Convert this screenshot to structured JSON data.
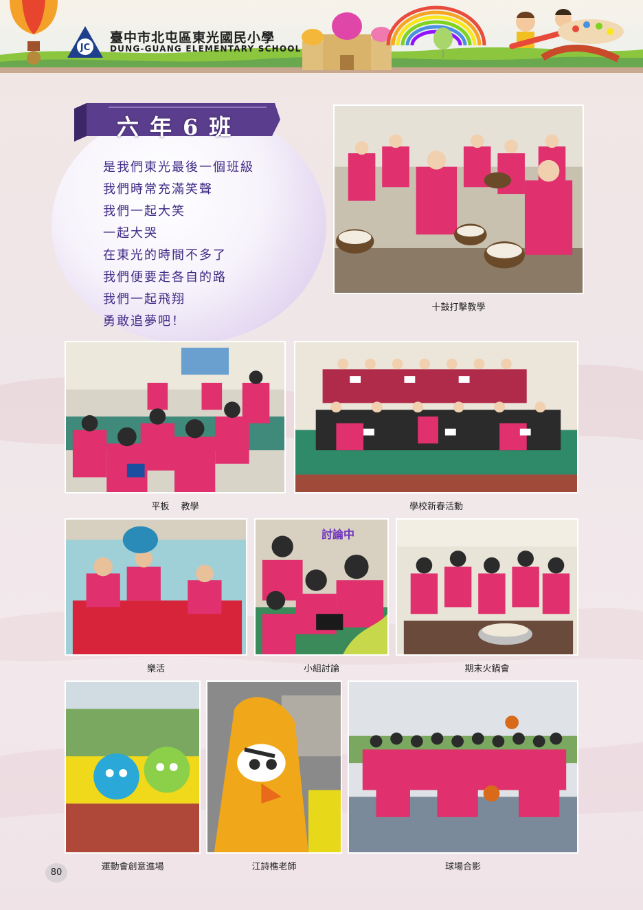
{
  "header": {
    "school_name_cn": "臺中市北屯區東光國民小學",
    "school_name_en": "DUNG-GUANG ELEMENTARY SCHOOL",
    "logo_letters": "JC"
  },
  "class_panel": {
    "title": "六年6班",
    "poem_lines": [
      "是我們東光最後一個班級",
      "我們時常充滿笑聲",
      "我們一起大笑",
      "一起大哭",
      "在東光的時間不多了",
      "我們便要走各自的路",
      "我們一起飛翔",
      "勇敢追夢吧！"
    ]
  },
  "photos": {
    "drums": {
      "caption": "十鼓打擊教學"
    },
    "tablet": {
      "caption": "平板　 教學"
    },
    "new_year": {
      "caption": "學校新春活動"
    },
    "music": {
      "caption": "樂活"
    },
    "discussion": {
      "caption": "小組討論",
      "tag": "討論中"
    },
    "hotpot": {
      "caption": "期末火鍋會"
    },
    "sports_parade": {
      "caption": "運動會創意進場"
    },
    "teacher": {
      "caption": "江詩樵老師"
    },
    "court": {
      "caption": "球場合影"
    }
  },
  "page_number": "80",
  "colors": {
    "shirt_pink": "#e0306e",
    "purple_text": "#3f2a86",
    "banner_purple": "#5a3d8c"
  }
}
